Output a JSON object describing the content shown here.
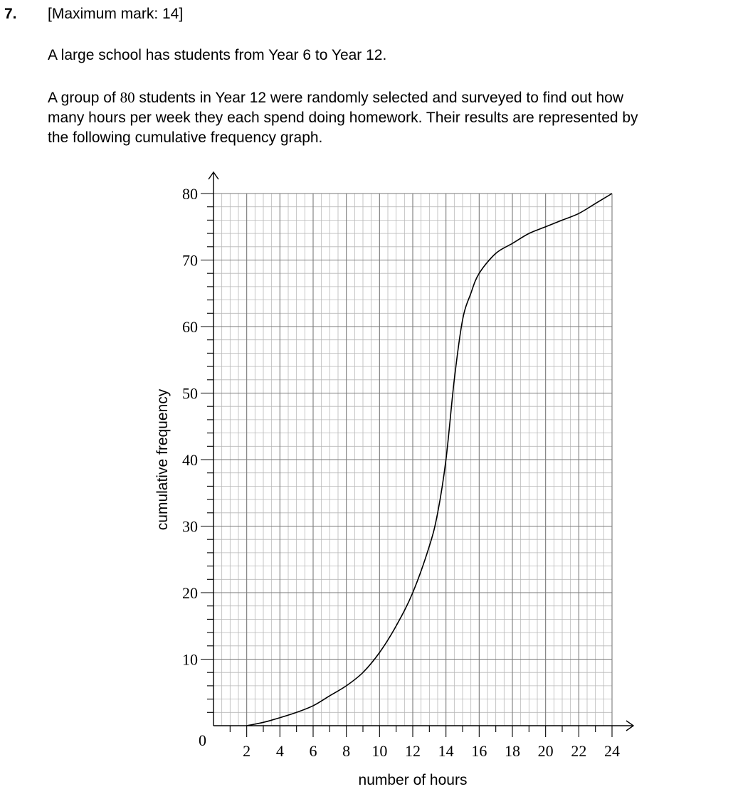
{
  "question": {
    "number": "7.",
    "max_mark": "[Maximum mark: 14]",
    "intro": "A large school has students from Year 6 to Year 12.",
    "para_pre": "A group of ",
    "para_num": "80",
    "para_line1_post": " students in Year 12 were randomly selected and surveyed to find out how",
    "para_line2": "many hours per week they each spend doing homework. Their results are represented by",
    "para_line3": "the following cumulative frequency graph."
  },
  "chart_data": {
    "type": "line",
    "xlabel": "number of hours",
    "ylabel": "cumulative frequency",
    "xlim": [
      0,
      24
    ],
    "ylim": [
      0,
      80
    ],
    "origin_label": "0",
    "x_ticks": [
      2,
      4,
      6,
      8,
      10,
      12,
      14,
      16,
      18,
      20,
      22,
      24
    ],
    "y_ticks": [
      10,
      20,
      30,
      40,
      50,
      60,
      70,
      80
    ],
    "grid": true,
    "series": [
      {
        "x": [
          2,
          3,
          4,
          5,
          6,
          7,
          8,
          9,
          10,
          11,
          12,
          13,
          13.5,
          14,
          14.5,
          15,
          15.5,
          16,
          17,
          18,
          19,
          20,
          21,
          22,
          23,
          24
        ],
        "y": [
          0,
          0.5,
          1.2,
          2,
          3,
          4.5,
          6,
          8,
          11,
          15,
          20,
          27,
          32,
          40,
          52,
          61,
          65,
          68,
          71,
          72.5,
          74,
          75,
          76,
          77,
          78.5,
          80
        ]
      }
    ]
  }
}
